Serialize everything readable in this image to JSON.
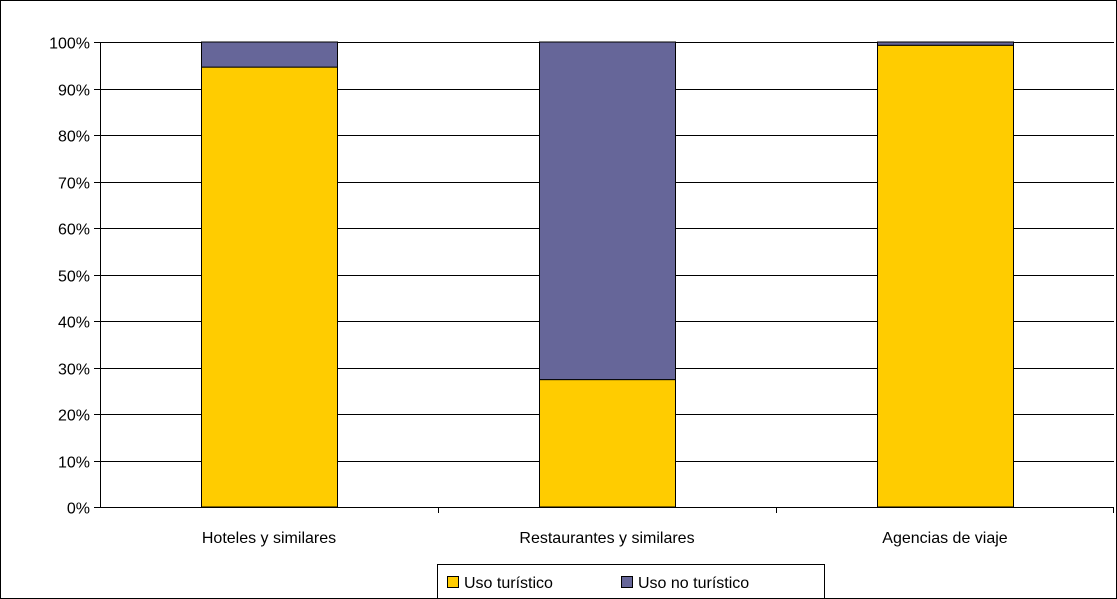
{
  "chart_data": {
    "type": "bar",
    "stacked": true,
    "percent": true,
    "categories": [
      "Hoteles y similares",
      "Restaurantes y similares",
      "Agencias de viaje"
    ],
    "series": [
      {
        "name": "Uso turístico",
        "values": [
          94.6,
          27.4,
          99.3
        ],
        "color": "#FFCC00"
      },
      {
        "name": "Uso no turístico",
        "values": [
          5.4,
          72.6,
          0.7
        ],
        "color": "#666699"
      }
    ],
    "title": "",
    "xlabel": "",
    "ylabel": "",
    "ylim": [
      0,
      100
    ],
    "yticks": [
      "0%",
      "10%",
      "20%",
      "30%",
      "40%",
      "50%",
      "60%",
      "70%",
      "80%",
      "90%",
      "100%"
    ],
    "grid": true,
    "legend_position": "bottom"
  }
}
